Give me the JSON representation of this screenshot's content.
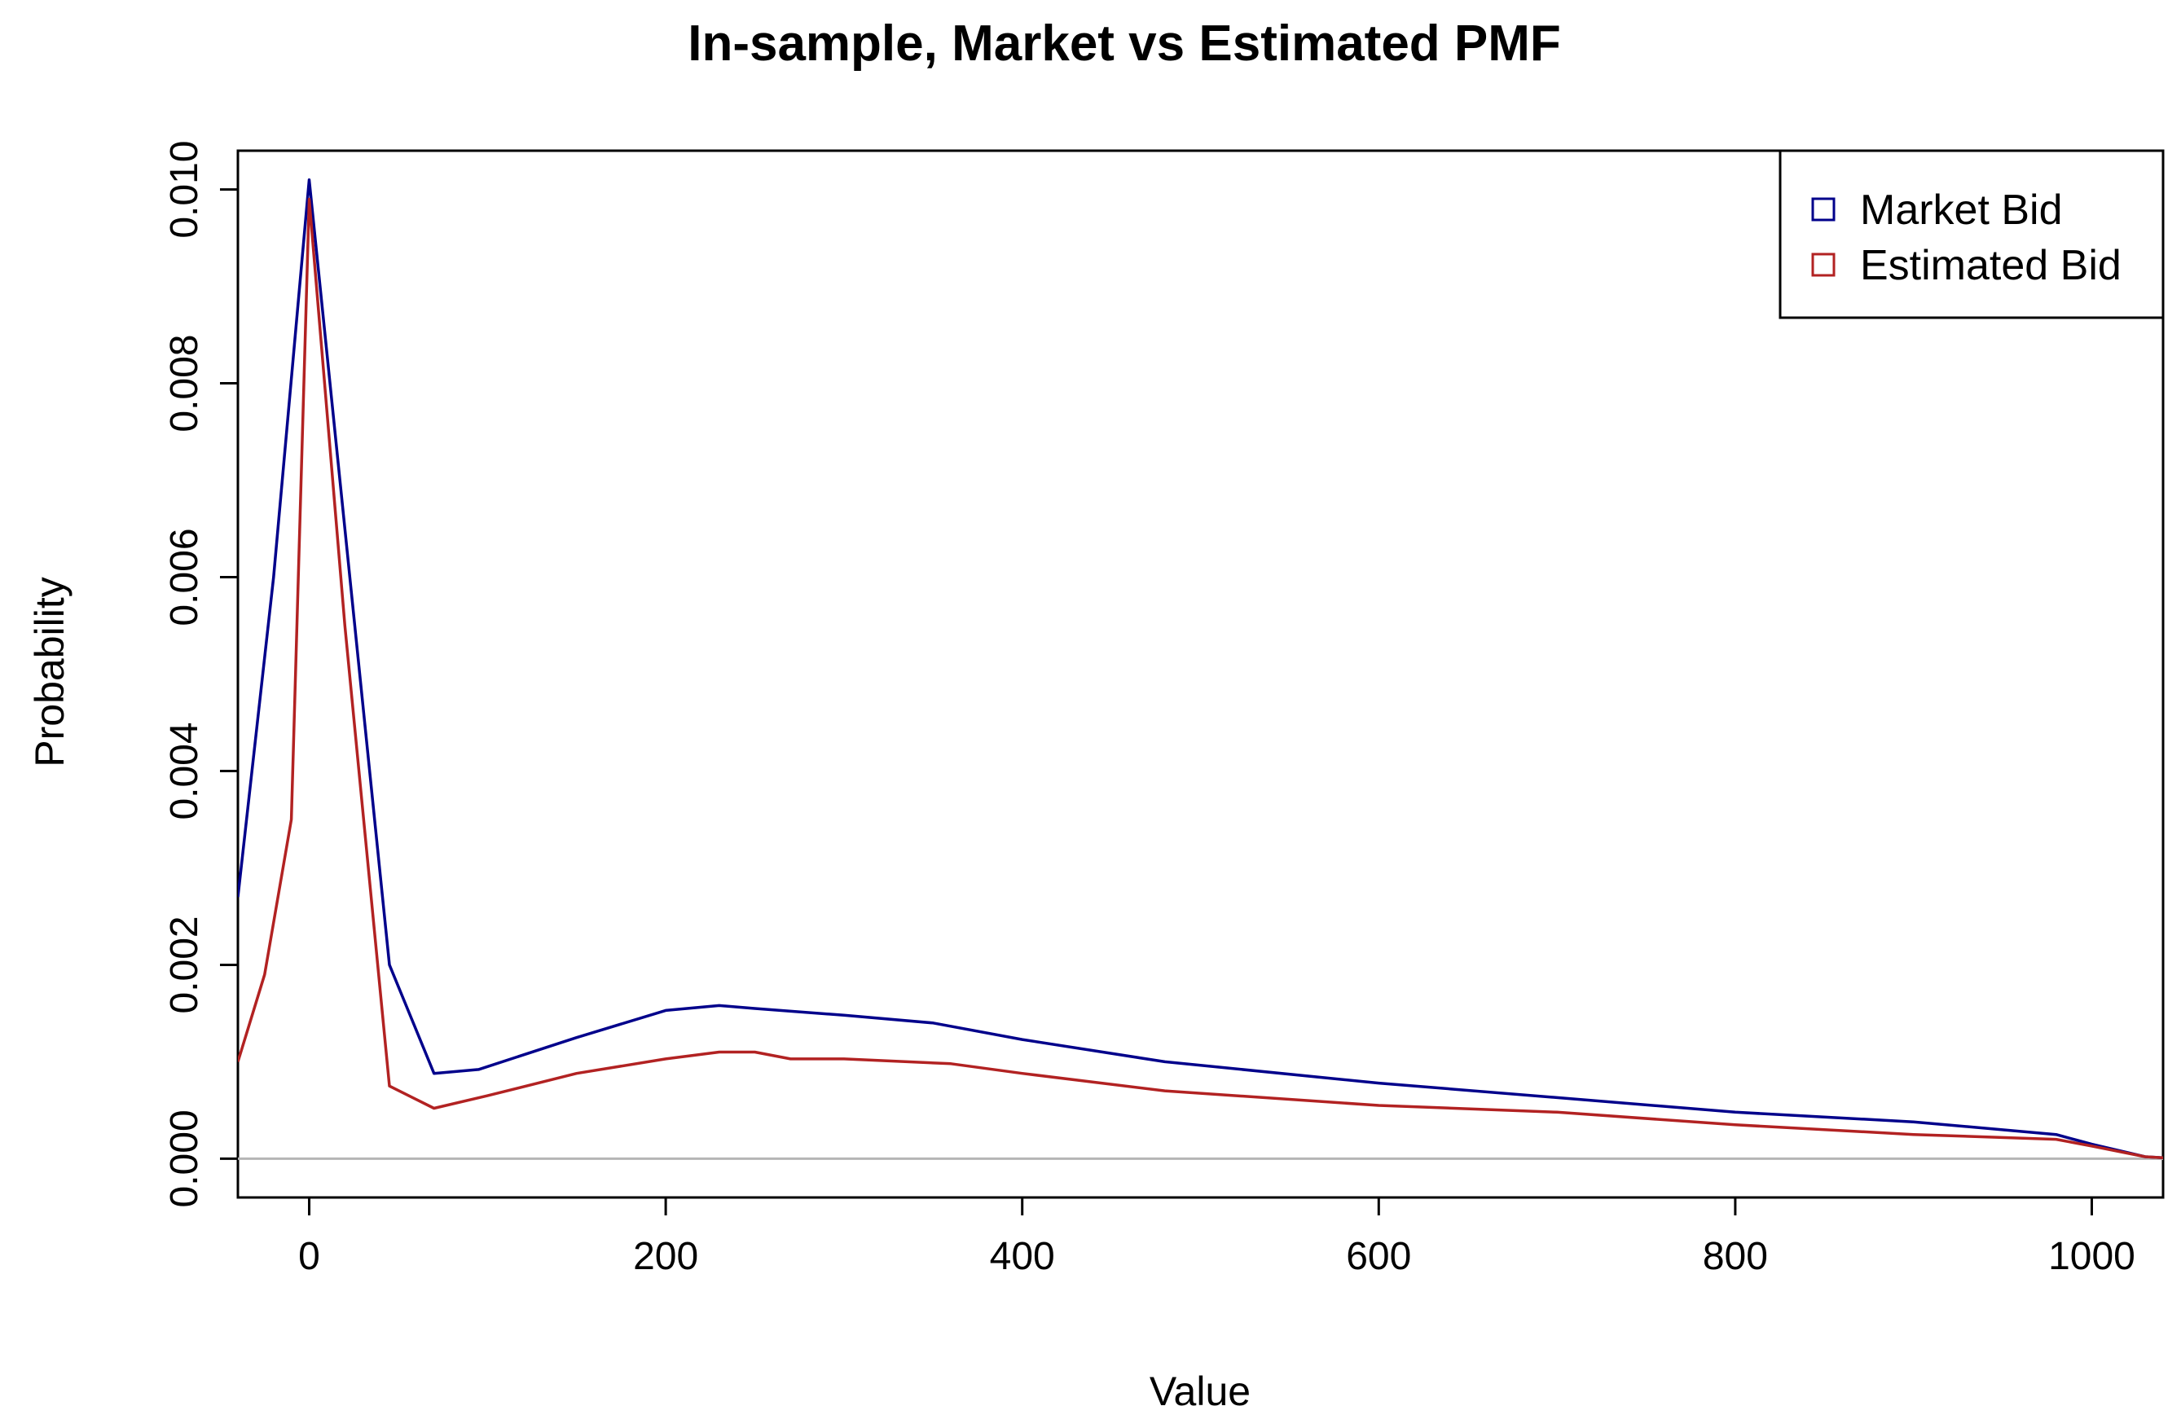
{
  "chart_data": {
    "type": "line",
    "title": "In-sample, Market vs Estimated PMF",
    "xlabel": "Value",
    "ylabel": "Probability",
    "xlim": [
      -40,
      1040
    ],
    "ylim": [
      -0.0004,
      0.0104
    ],
    "x_ticks": [
      0,
      200,
      400,
      600,
      800,
      1000
    ],
    "x_tick_labels": [
      "0",
      "200",
      "400",
      "600",
      "800",
      "1000"
    ],
    "y_ticks": [
      0.0,
      0.002,
      0.004,
      0.006,
      0.008,
      0.01
    ],
    "y_tick_labels": [
      "0.000",
      "0.002",
      "0.004",
      "0.006",
      "0.008",
      "0.010"
    ],
    "zero_line": true,
    "grid": false,
    "legend_position": "top-right",
    "series": [
      {
        "name": "Market Bid",
        "color": "#00008B",
        "x": [
          -40,
          -20,
          0,
          20,
          45,
          70,
          95,
          150,
          200,
          230,
          250,
          300,
          350,
          400,
          480,
          600,
          700,
          800,
          900,
          980,
          1000,
          1030,
          1040
        ],
        "y": [
          0.0027,
          0.006,
          0.0101,
          0.0065,
          0.002,
          0.00088,
          0.00092,
          0.00125,
          0.00153,
          0.00158,
          0.00155,
          0.00148,
          0.0014,
          0.00123,
          0.001,
          0.00078,
          0.00063,
          0.00048,
          0.00038,
          0.00025,
          0.00015,
          2e-05,
          1e-05
        ]
      },
      {
        "name": "Estimated Bid",
        "color": "#B22222",
        "x": [
          -40,
          -25,
          -10,
          0,
          20,
          45,
          70,
          100,
          150,
          200,
          230,
          250,
          270,
          300,
          360,
          400,
          480,
          600,
          700,
          800,
          900,
          980,
          1000,
          1030,
          1040
        ],
        "y": [
          0.001,
          0.0019,
          0.0035,
          0.0099,
          0.0055,
          0.00075,
          0.00052,
          0.00065,
          0.00088,
          0.00103,
          0.0011,
          0.0011,
          0.00103,
          0.00103,
          0.00098,
          0.00088,
          0.0007,
          0.00055,
          0.00048,
          0.00035,
          0.00025,
          0.0002,
          0.00013,
          2e-05,
          1e-05
        ]
      }
    ]
  }
}
